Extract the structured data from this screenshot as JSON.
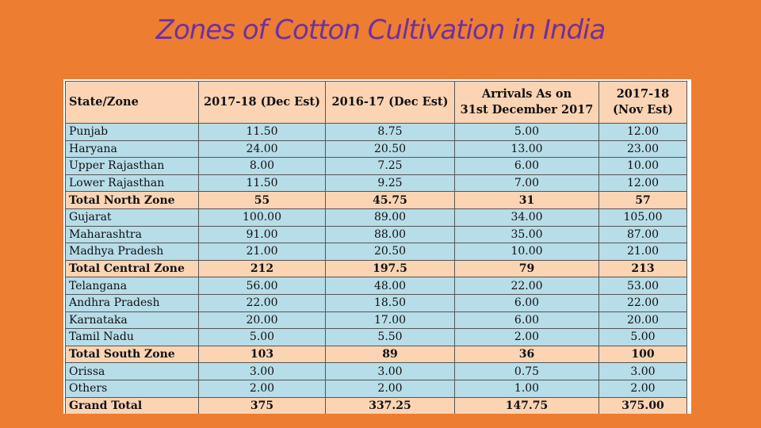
{
  "title": "Zones of Cotton Cultivation in India",
  "table": {
    "headers": [
      {
        "lines": [
          "State/Zone"
        ]
      },
      {
        "lines": [
          "2017-18 (Dec Est)"
        ]
      },
      {
        "lines": [
          "2016-17 (Dec Est)"
        ]
      },
      {
        "lines": [
          "Arrivals As on",
          "31st December 2017"
        ]
      },
      {
        "lines": [
          "2017-18",
          "(Nov Est)"
        ]
      }
    ],
    "rows": [
      {
        "kind": "state",
        "cells": [
          "Punjab",
          "11.50",
          "8.75",
          "5.00",
          "12.00"
        ]
      },
      {
        "kind": "state",
        "cells": [
          "Haryana",
          "24.00",
          "20.50",
          "13.00",
          "23.00"
        ]
      },
      {
        "kind": "state",
        "cells": [
          "Upper Rajasthan",
          "8.00",
          "7.25",
          "6.00",
          "10.00"
        ]
      },
      {
        "kind": "state",
        "cells": [
          "Lower Rajasthan",
          "11.50",
          "9.25",
          "7.00",
          "12.00"
        ]
      },
      {
        "kind": "total",
        "cells": [
          "Total North Zone",
          "55",
          "45.75",
          "31",
          "57"
        ]
      },
      {
        "kind": "state",
        "cells": [
          "Gujarat",
          "100.00",
          "89.00",
          "34.00",
          "105.00"
        ]
      },
      {
        "kind": "state",
        "cells": [
          "Maharashtra",
          "91.00",
          "88.00",
          "35.00",
          "87.00"
        ]
      },
      {
        "kind": "state",
        "cells": [
          "Madhya Pradesh",
          "21.00",
          "20.50",
          "10.00",
          "21.00"
        ]
      },
      {
        "kind": "total",
        "cells": [
          "Total Central Zone",
          "212",
          "197.5",
          "79",
          "213"
        ]
      },
      {
        "kind": "state",
        "cells": [
          "Telangana",
          "56.00",
          "48.00",
          "22.00",
          "53.00"
        ]
      },
      {
        "kind": "state",
        "cells": [
          "Andhra Pradesh",
          "22.00",
          "18.50",
          "6.00",
          "22.00"
        ]
      },
      {
        "kind": "state",
        "cells": [
          "Karnataka",
          "20.00",
          "17.00",
          "6.00",
          "20.00"
        ]
      },
      {
        "kind": "state",
        "cells": [
          "Tamil Nadu",
          "5.00",
          "5.50",
          "2.00",
          "5.00"
        ]
      },
      {
        "kind": "total",
        "cells": [
          "Total South Zone",
          "103",
          "89",
          "36",
          "100"
        ]
      },
      {
        "kind": "state",
        "cells": [
          "Orissa",
          "3.00",
          "3.00",
          "0.75",
          "3.00"
        ]
      },
      {
        "kind": "state",
        "cells": [
          "Others",
          "2.00",
          "2.00",
          "1.00",
          "2.00"
        ]
      },
      {
        "kind": "total",
        "cells": [
          "Grand Total",
          "375",
          "337.25",
          "147.75",
          "375.00"
        ]
      }
    ]
  }
}
